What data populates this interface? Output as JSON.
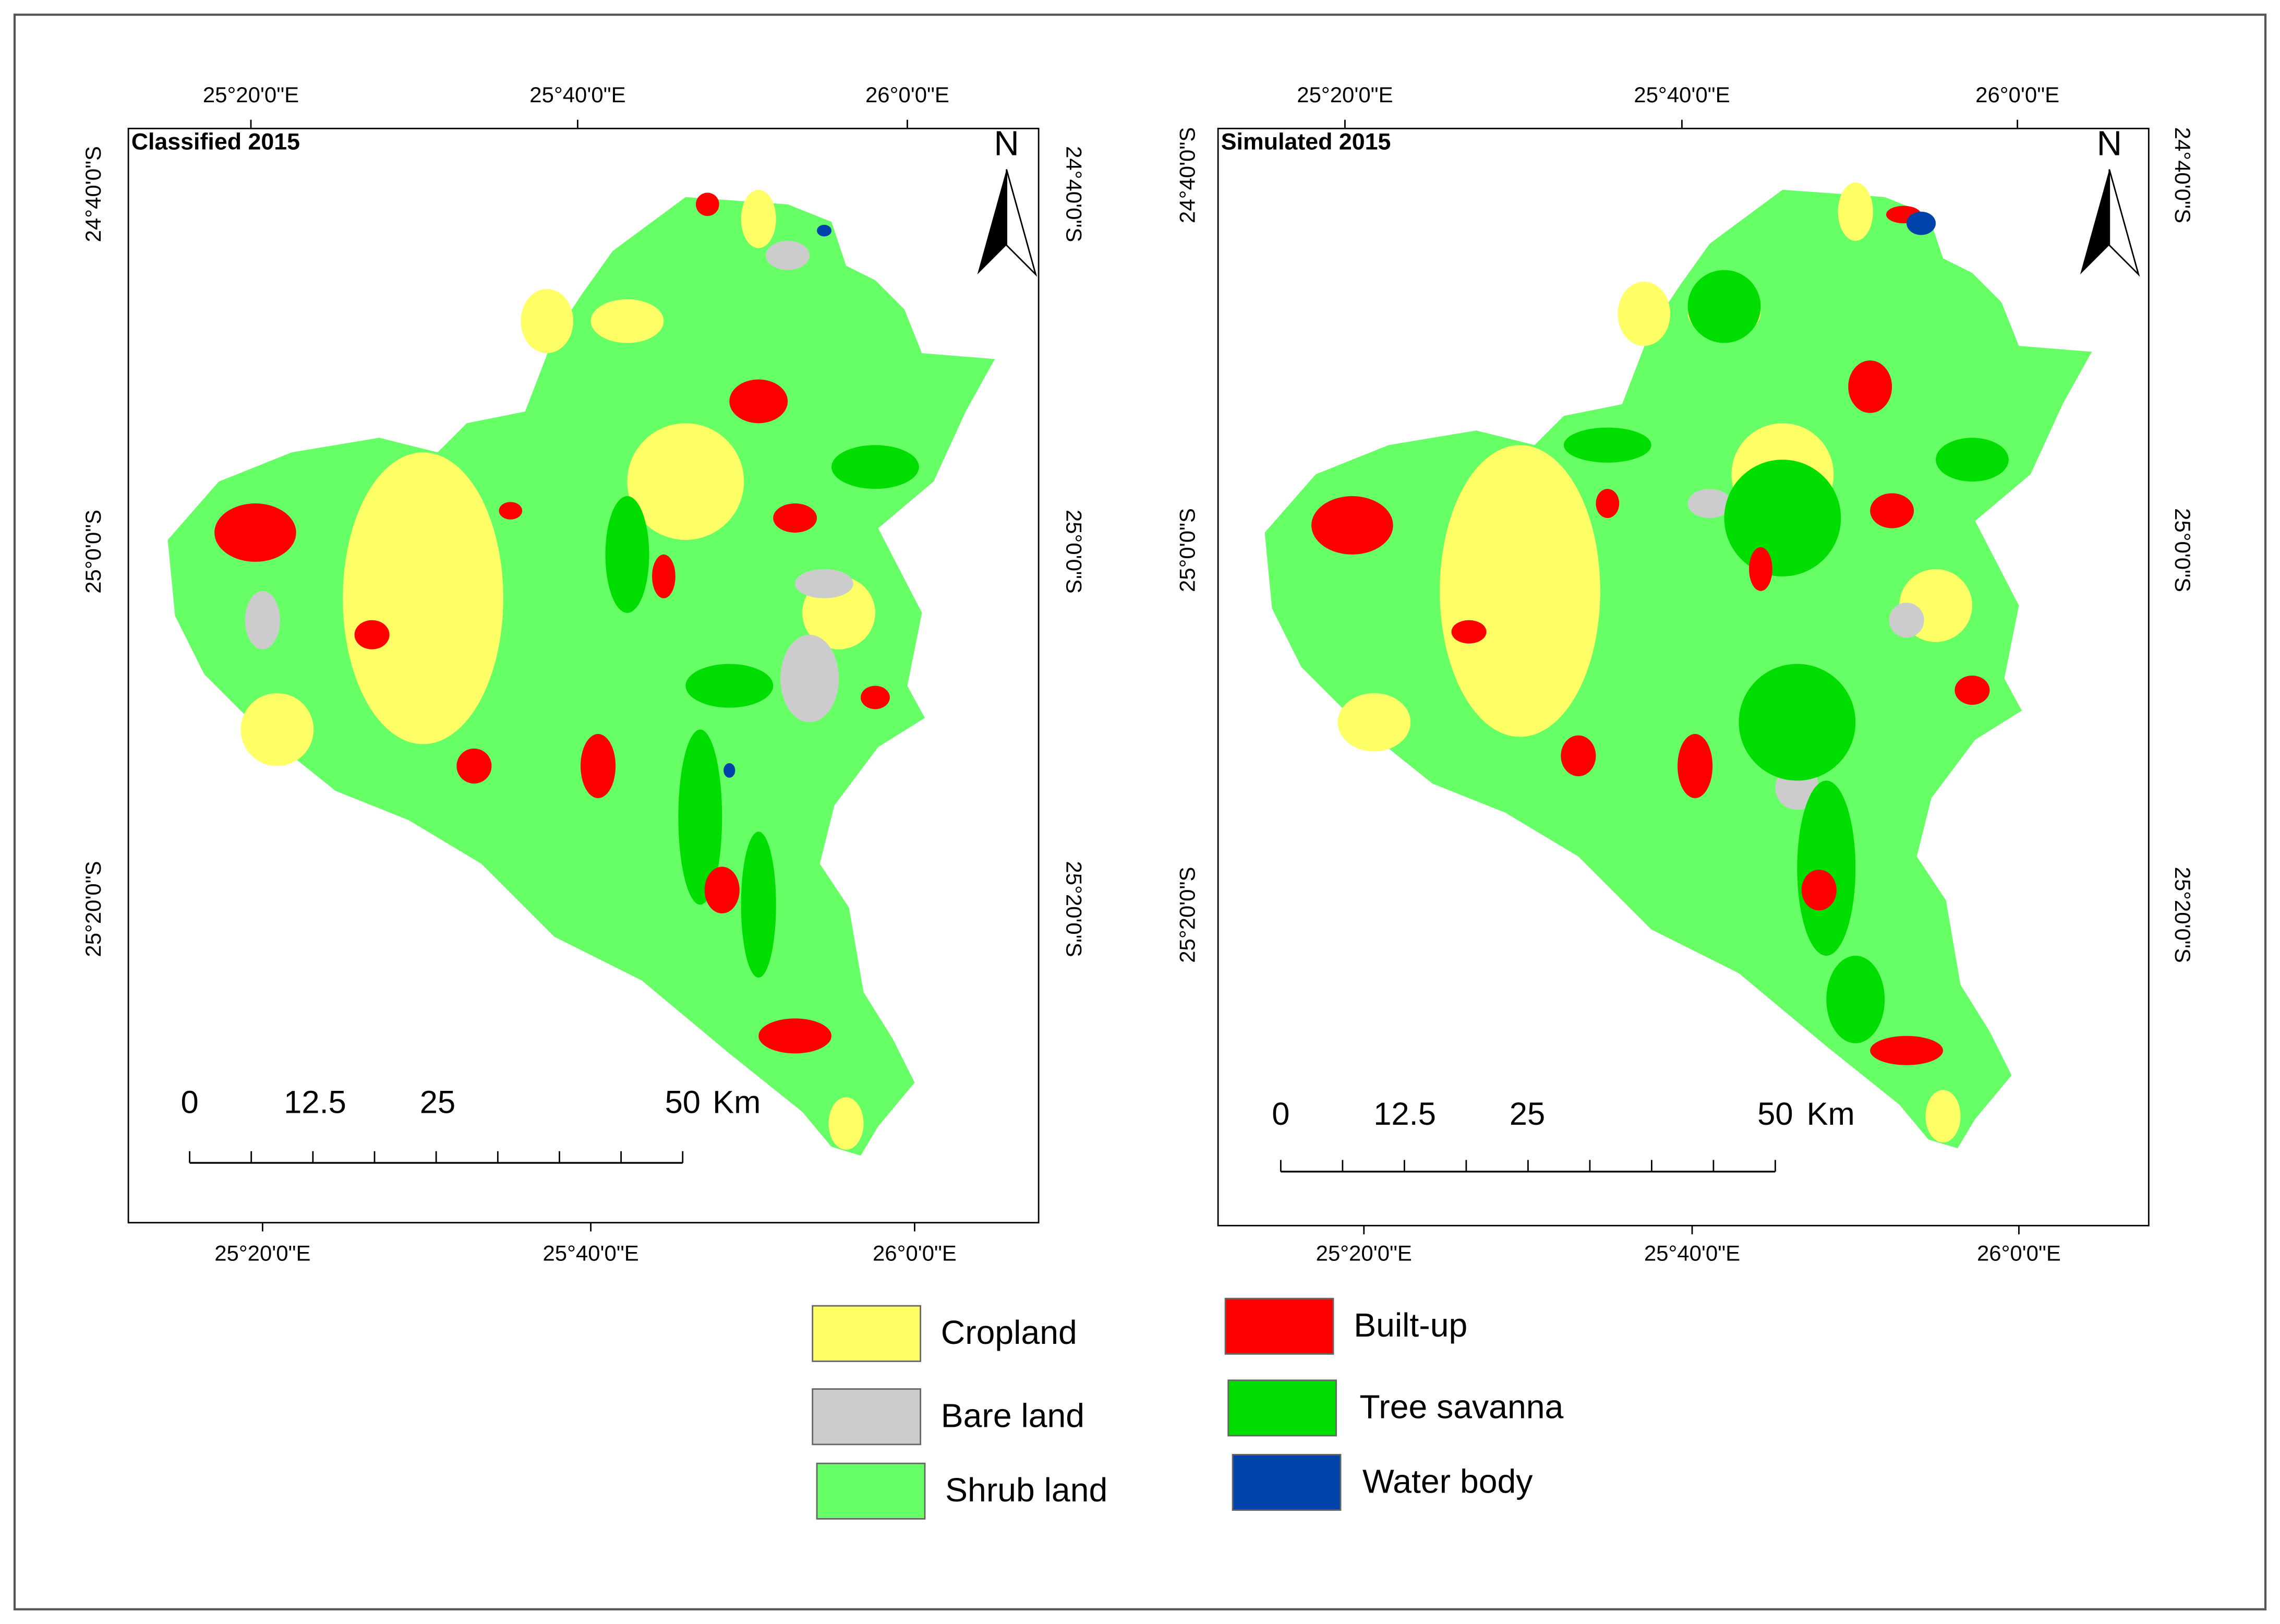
{
  "panels": [
    {
      "title": "Classified 2015",
      "top_labels": [
        "25°20'0\"E",
        "25°40'0\"E",
        "26°0'0\"E"
      ],
      "bottom_labels": [
        "25°20'0\"E",
        "25°40'0\"E",
        "26°0'0\"E"
      ],
      "left_labels": [
        "24°40'0\"S",
        "25°0'0\"S",
        "25°20'0\"S"
      ],
      "right_labels": [
        "24°40'0\"S",
        "25°0'0\"S",
        "25°20'0\"S"
      ],
      "north": "N",
      "scale_labels": [
        "0",
        "12.5",
        "25",
        "50"
      ],
      "scale_unit": "Km"
    },
    {
      "title": "Simulated 2015",
      "top_labels": [
        "25°20'0\"E",
        "25°40'0\"E",
        "26°0'0\"E"
      ],
      "bottom_labels": [
        "25°20'0\"E",
        "25°40'0\"E",
        "26°0'0\"E"
      ],
      "left_labels": [
        "24°40'0\"S",
        "25°0'0\"S",
        "25°20'0\"S"
      ],
      "right_labels": [
        "24°40'0\"S",
        "25°0'0\"S",
        "25°20'0\"S"
      ],
      "north": "N",
      "scale_labels": [
        "0",
        "12.5",
        "25",
        "50"
      ],
      "scale_unit": "Km"
    }
  ],
  "legend": [
    {
      "label": "Cropland",
      "color": "#ffff66"
    },
    {
      "label": "Bare land",
      "color": "#cccccc"
    },
    {
      "label": "Shrub land",
      "color": "#66ff66"
    },
    {
      "label": "Built-up",
      "color": "#ff0000"
    },
    {
      "label": "Tree savanna",
      "color": "#00dd00"
    },
    {
      "label": "Water body",
      "color": "#0044aa"
    }
  ]
}
